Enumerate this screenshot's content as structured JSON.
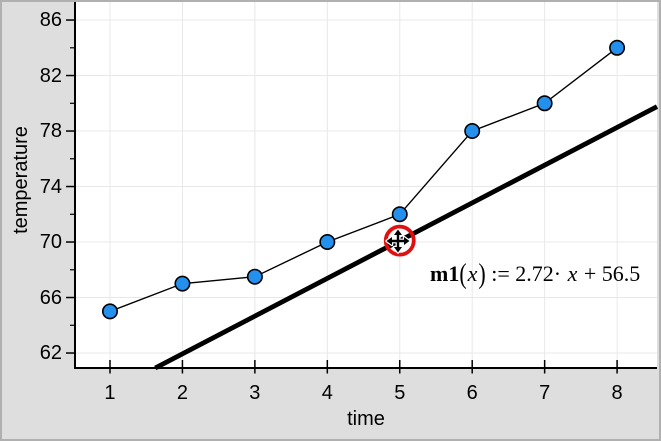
{
  "chart_data": {
    "type": "scatter",
    "title": "",
    "xlabel": "time",
    "ylabel": "temperature",
    "x_ticks": [
      1,
      2,
      3,
      4,
      5,
      6,
      7,
      8
    ],
    "y_major_ticks": [
      62,
      66,
      70,
      74,
      78,
      82,
      86
    ],
    "y_minor_ticks": [
      64,
      68,
      72,
      76,
      80,
      84
    ],
    "xlim": [
      0.517,
      8.551
    ],
    "ylim": [
      60.92,
      87.3
    ],
    "grid": true,
    "points_connected": true,
    "points": [
      {
        "x": 1,
        "y": 65
      },
      {
        "x": 2,
        "y": 67
      },
      {
        "x": 3,
        "y": 67.5
      },
      {
        "x": 4,
        "y": 70
      },
      {
        "x": 5,
        "y": 72
      },
      {
        "x": 6,
        "y": 78
      },
      {
        "x": 7,
        "y": 80
      },
      {
        "x": 8,
        "y": 84
      }
    ],
    "movable_line": {
      "slope": 2.72,
      "intercept": 56.5
    },
    "equation": {
      "name": "m1",
      "open": "(",
      "arg": "x",
      "close": ")",
      "assign": " := ",
      "coef": "2.72· ",
      "variable": "x",
      "rest": " + 56.5",
      "full": "m1(x) := 2.72· x + 56.5"
    },
    "selection": {
      "x": 5,
      "y": 70.1
    },
    "colors": {
      "point_fill": "#2490ee",
      "point_stroke": "#000000",
      "connect_line": "#000000",
      "movable_line": "#000000",
      "grid": "#e8e8e8",
      "axis": "#000000",
      "selection_ring": "#e01010",
      "margin_bg": "#dedede",
      "plot_bg": "#ffffff",
      "frame_border": "#b0b0b0"
    }
  }
}
